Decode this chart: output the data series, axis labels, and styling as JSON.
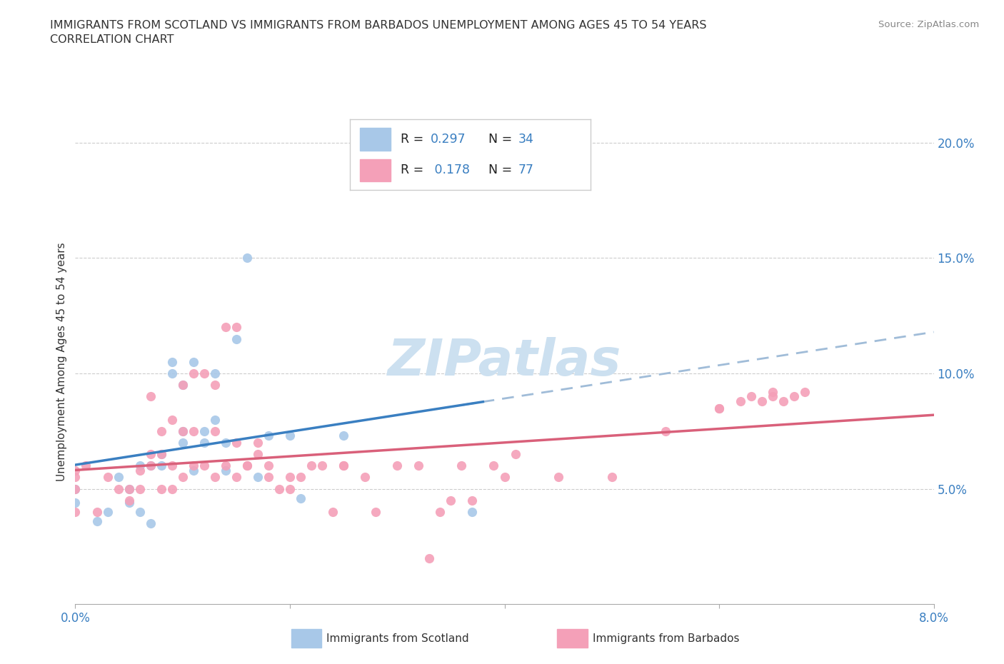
{
  "title_line1": "IMMIGRANTS FROM SCOTLAND VS IMMIGRANTS FROM BARBADOS UNEMPLOYMENT AMONG AGES 45 TO 54 YEARS",
  "title_line2": "CORRELATION CHART",
  "source_text": "Source: ZipAtlas.com",
  "ylabel": "Unemployment Among Ages 45 to 54 years",
  "xlim": [
    0.0,
    0.08
  ],
  "ylim": [
    0.0,
    0.21
  ],
  "yticks_right": [
    0.05,
    0.1,
    0.15,
    0.2
  ],
  "ytick_labels_right": [
    "5.0%",
    "10.0%",
    "15.0%",
    "20.0%"
  ],
  "scotland_color": "#a8c8e8",
  "barbados_color": "#f4a0b8",
  "scotland_line_color": "#3a7fc1",
  "barbados_line_color": "#d9607a",
  "trendline_ext_color": "#a0bcd8",
  "legend_text_color": "#3a7fc1",
  "scotland_R": 0.297,
  "scotland_N": 34,
  "barbados_R": 0.178,
  "barbados_N": 77,
  "watermark_color": "#cce0f0",
  "scotland_x": [
    0.0,
    0.0,
    0.002,
    0.003,
    0.004,
    0.005,
    0.005,
    0.006,
    0.006,
    0.007,
    0.007,
    0.008,
    0.008,
    0.009,
    0.009,
    0.01,
    0.01,
    0.01,
    0.011,
    0.011,
    0.012,
    0.012,
    0.013,
    0.013,
    0.014,
    0.014,
    0.015,
    0.016,
    0.017,
    0.018,
    0.02,
    0.021,
    0.025,
    0.037
  ],
  "scotland_y": [
    0.044,
    0.05,
    0.036,
    0.04,
    0.055,
    0.05,
    0.044,
    0.04,
    0.06,
    0.06,
    0.035,
    0.06,
    0.065,
    0.1,
    0.105,
    0.07,
    0.075,
    0.095,
    0.105,
    0.058,
    0.07,
    0.075,
    0.08,
    0.1,
    0.058,
    0.07,
    0.115,
    0.15,
    0.055,
    0.073,
    0.073,
    0.046,
    0.073,
    0.04
  ],
  "barbados_x": [
    0.0,
    0.0,
    0.0,
    0.0,
    0.001,
    0.002,
    0.003,
    0.004,
    0.005,
    0.005,
    0.006,
    0.006,
    0.007,
    0.007,
    0.007,
    0.008,
    0.008,
    0.008,
    0.009,
    0.009,
    0.009,
    0.01,
    0.01,
    0.01,
    0.011,
    0.011,
    0.011,
    0.012,
    0.012,
    0.013,
    0.013,
    0.013,
    0.014,
    0.014,
    0.015,
    0.015,
    0.015,
    0.016,
    0.016,
    0.017,
    0.017,
    0.018,
    0.018,
    0.019,
    0.02,
    0.02,
    0.021,
    0.022,
    0.023,
    0.024,
    0.025,
    0.025,
    0.027,
    0.028,
    0.03,
    0.032,
    0.033,
    0.034,
    0.035,
    0.036,
    0.037,
    0.039,
    0.04,
    0.041,
    0.045,
    0.05,
    0.055,
    0.06,
    0.06,
    0.062,
    0.063,
    0.064,
    0.065,
    0.065,
    0.066,
    0.067,
    0.068
  ],
  "barbados_y": [
    0.055,
    0.058,
    0.05,
    0.04,
    0.06,
    0.04,
    0.055,
    0.05,
    0.05,
    0.045,
    0.058,
    0.05,
    0.06,
    0.065,
    0.09,
    0.065,
    0.05,
    0.075,
    0.06,
    0.05,
    0.08,
    0.055,
    0.075,
    0.095,
    0.06,
    0.075,
    0.1,
    0.06,
    0.1,
    0.055,
    0.075,
    0.095,
    0.06,
    0.12,
    0.055,
    0.07,
    0.12,
    0.06,
    0.06,
    0.065,
    0.07,
    0.055,
    0.06,
    0.05,
    0.05,
    0.055,
    0.055,
    0.06,
    0.06,
    0.04,
    0.06,
    0.06,
    0.055,
    0.04,
    0.06,
    0.06,
    0.02,
    0.04,
    0.045,
    0.06,
    0.045,
    0.06,
    0.055,
    0.065,
    0.055,
    0.055,
    0.075,
    0.085,
    0.085,
    0.088,
    0.09,
    0.088,
    0.09,
    0.092,
    0.088,
    0.09,
    0.092
  ]
}
